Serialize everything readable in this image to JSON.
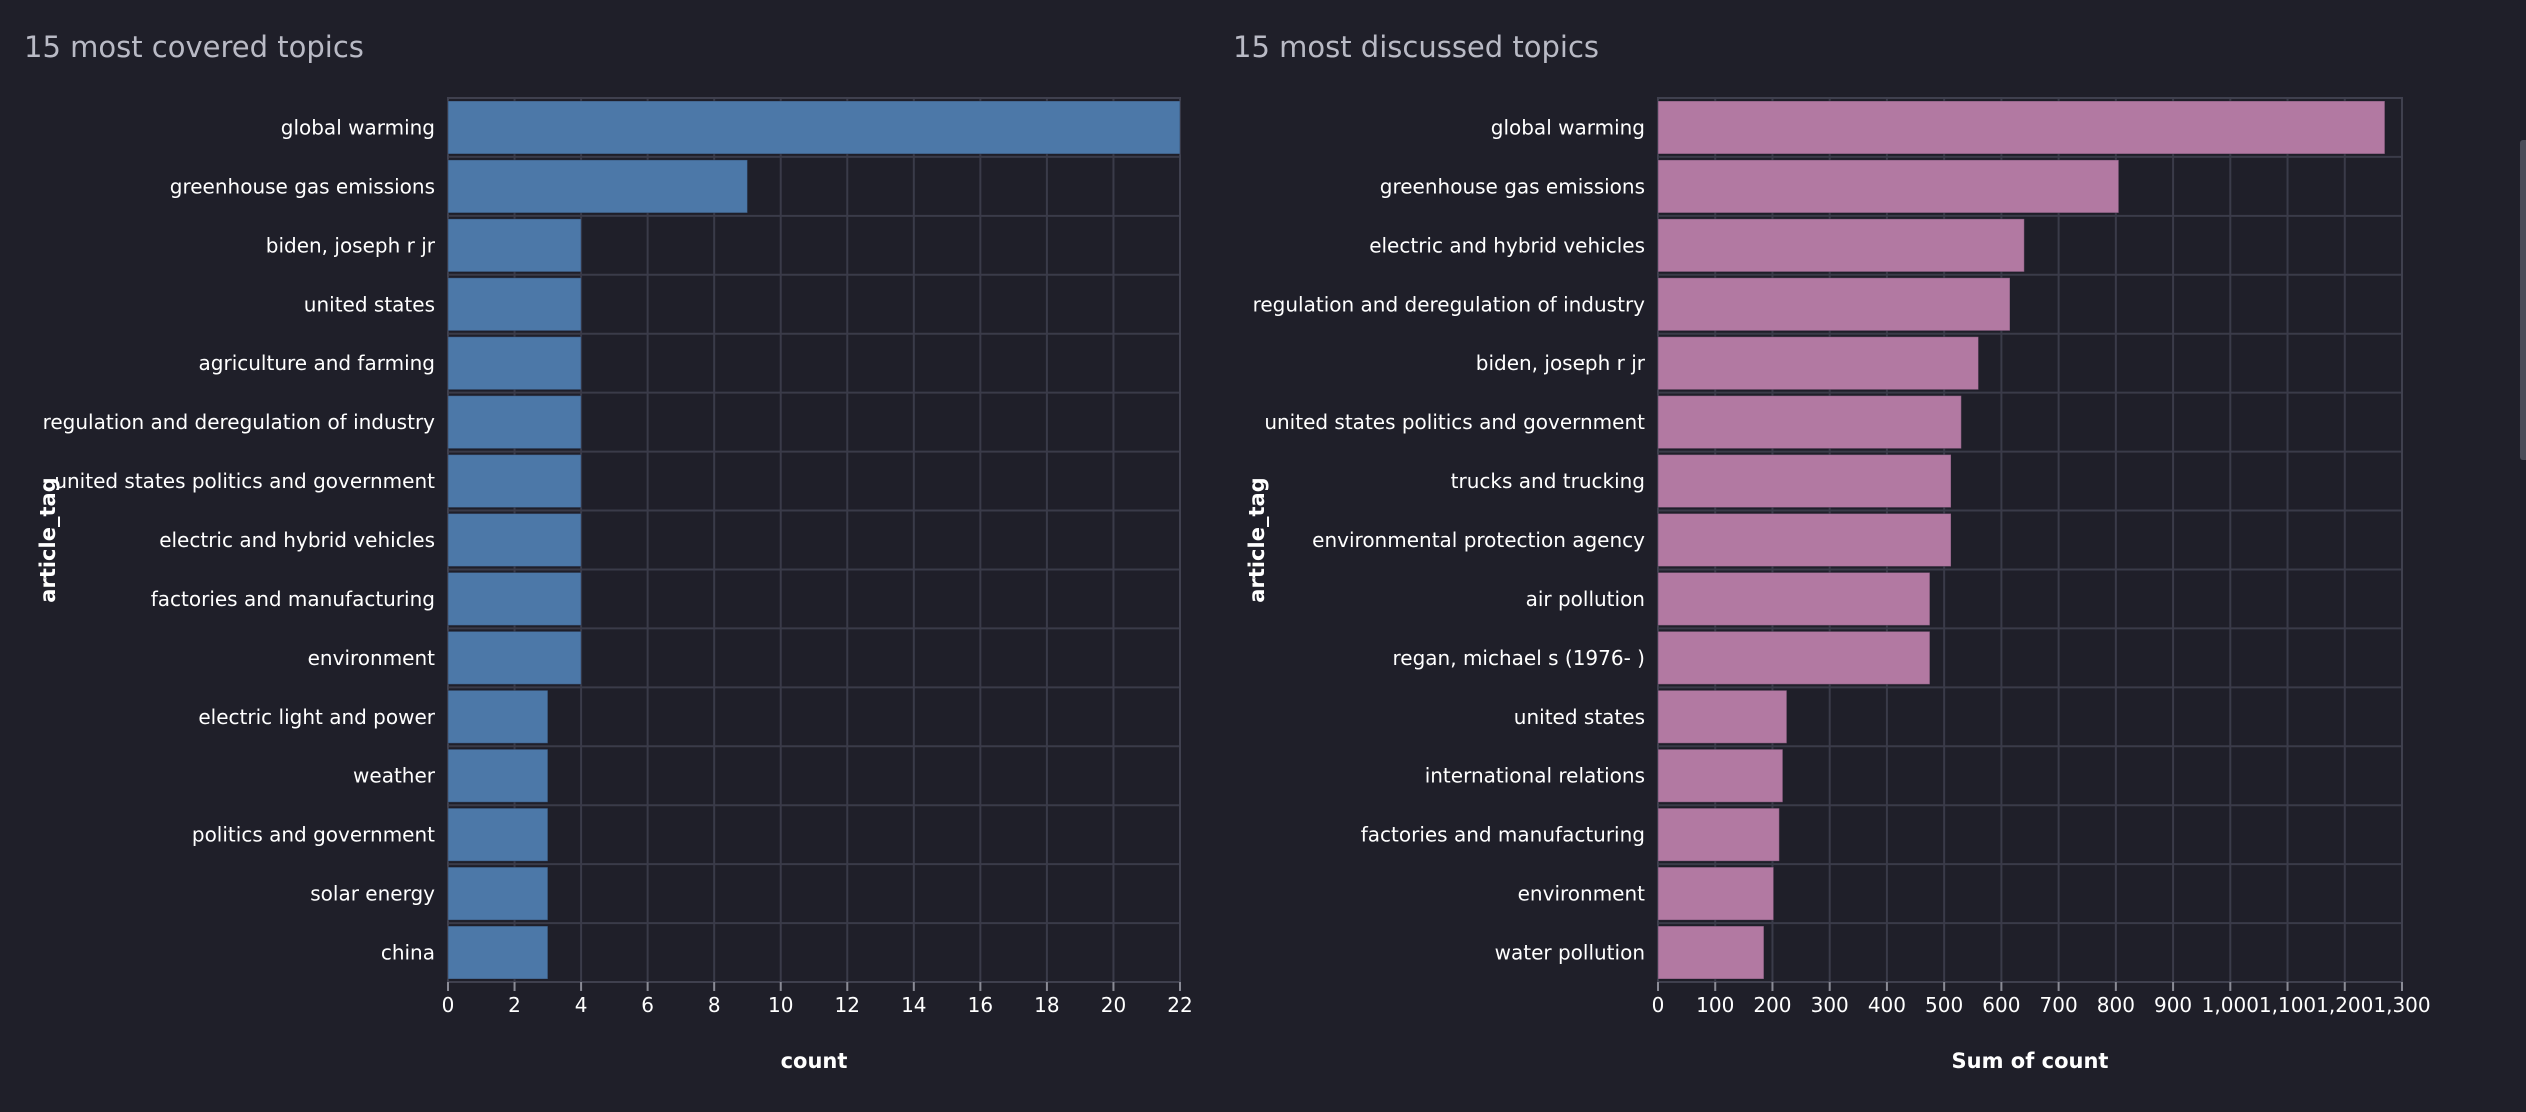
{
  "chart_data": [
    {
      "type": "bar",
      "orientation": "horizontal",
      "title": "15 most covered topics",
      "xlabel": "count",
      "ylabel": "article_tag",
      "xlim": [
        0,
        22
      ],
      "xticks": [
        0,
        2,
        4,
        6,
        8,
        10,
        12,
        14,
        16,
        18,
        20,
        22
      ],
      "xtick_labels": [
        "0",
        "2",
        "4",
        "6",
        "8",
        "10",
        "12",
        "14",
        "16",
        "18",
        "20",
        "22"
      ],
      "grid": true,
      "color": "#4c78a8",
      "categories": [
        "global warming",
        "greenhouse gas emissions",
        "biden, joseph r jr",
        "united states",
        "agriculture and farming",
        "regulation and deregulation of industry",
        "united states politics and government",
        "electric and hybrid vehicles",
        "factories and manufacturing",
        "environment",
        "electric light and power",
        "weather",
        "politics and government",
        "solar energy",
        "china"
      ],
      "values": [
        22,
        9,
        4,
        4,
        4,
        4,
        4,
        4,
        4,
        4,
        3,
        3,
        3,
        3,
        3
      ]
    },
    {
      "type": "bar",
      "orientation": "horizontal",
      "title": "15 most discussed topics",
      "xlabel": "Sum of count",
      "ylabel": "article_tag",
      "xlim": [
        0,
        1300
      ],
      "xticks": [
        0,
        100,
        200,
        300,
        400,
        500,
        600,
        700,
        800,
        900,
        1000,
        1100,
        1200,
        1300
      ],
      "xtick_labels": [
        "0",
        "100",
        "200",
        "300",
        "400",
        "500",
        "600",
        "700",
        "800",
        "900",
        "1,000",
        "1,100",
        "1,200",
        "1,300"
      ],
      "grid": true,
      "color": "#b279a2",
      "categories": [
        "global warming",
        "greenhouse gas emissions",
        "electric and hybrid vehicles",
        "regulation and deregulation of industry",
        "biden, joseph r jr",
        "united states politics and government",
        "trucks and trucking",
        "environmental protection agency",
        "air pollution",
        "regan, michael s (1976- )",
        "united states",
        "international relations",
        "factories and manufacturing",
        "environment",
        "water pollution"
      ],
      "values": [
        1270,
        805,
        640,
        615,
        560,
        530,
        512,
        512,
        475,
        475,
        225,
        218,
        212,
        202,
        185
      ]
    }
  ]
}
